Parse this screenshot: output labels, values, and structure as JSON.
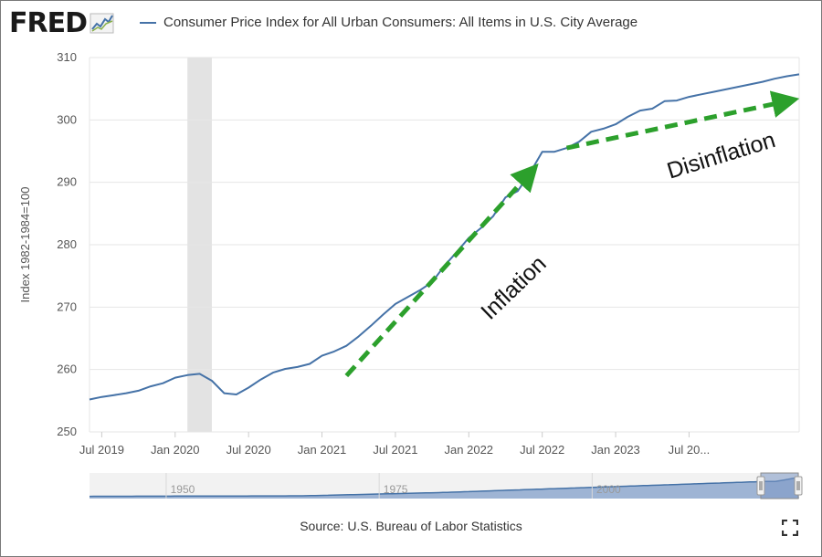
{
  "header": {
    "logo_text": "FRED",
    "series_label": "Consumer Price Index for All Urban Consumers: All Items in U.S. City Average"
  },
  "source": "Source: U.S. Bureau of Labor Statistics",
  "icons": {
    "logo": "line-chart-icon",
    "fullscreen": "fullscreen-icon"
  },
  "colors": {
    "series": "#4572a7",
    "recession": "#e3e3e3",
    "arrow": "#2ca02c",
    "navigator_fill": "#8fa9cf"
  },
  "annotations": [
    {
      "text": "Inflation",
      "from": [
        "2021-03",
        259
      ],
      "to": [
        "2022-06",
        291.5
      ]
    },
    {
      "text": "Disinflation",
      "from": [
        "2022-09",
        295.5
      ],
      "to": [
        "2024-03",
        303
      ]
    }
  ],
  "chart_data": {
    "type": "line",
    "title": "",
    "xlabel": "",
    "ylabel": "Index 1982-1984=100",
    "ylim": [
      250,
      310
    ],
    "yticks": [
      250,
      260,
      270,
      280,
      290,
      300,
      310
    ],
    "xrange": [
      "2019-06",
      "2024-04"
    ],
    "xticks": [
      {
        "date": "2019-07",
        "label": "Jul 2019"
      },
      {
        "date": "2020-01",
        "label": "Jan 2020"
      },
      {
        "date": "2020-07",
        "label": "Jul 2020"
      },
      {
        "date": "2021-01",
        "label": "Jan 2021"
      },
      {
        "date": "2021-07",
        "label": "Jul 2021"
      },
      {
        "date": "2022-01",
        "label": "Jan 2022"
      },
      {
        "date": "2022-07",
        "label": "Jul 2022"
      },
      {
        "date": "2023-01",
        "label": "Jan 2023"
      },
      {
        "date": "2023-07",
        "label": "Jul 20..."
      }
    ],
    "grid": true,
    "legend": "top-left",
    "recession": {
      "start": "2020-02",
      "end": "2020-04"
    },
    "series": [
      {
        "name": "Consumer Price Index for All Urban Consumers: All Items in U.S. City Average",
        "x": [
          "2019-06",
          "2019-07",
          "2019-08",
          "2019-09",
          "2019-10",
          "2019-11",
          "2019-12",
          "2020-01",
          "2020-02",
          "2020-03",
          "2020-04",
          "2020-05",
          "2020-06",
          "2020-07",
          "2020-08",
          "2020-09",
          "2020-10",
          "2020-11",
          "2020-12",
          "2021-01",
          "2021-02",
          "2021-03",
          "2021-04",
          "2021-05",
          "2021-06",
          "2021-07",
          "2021-08",
          "2021-09",
          "2021-10",
          "2021-11",
          "2021-12",
          "2022-01",
          "2022-02",
          "2022-03",
          "2022-04",
          "2022-05",
          "2022-06",
          "2022-07",
          "2022-08",
          "2022-09",
          "2022-10",
          "2022-11",
          "2022-12",
          "2023-01",
          "2023-02",
          "2023-03",
          "2023-04",
          "2023-05",
          "2023-06",
          "2023-07",
          "2023-08",
          "2023-09",
          "2023-10",
          "2023-11",
          "2023-12",
          "2024-01",
          "2024-02",
          "2024-03",
          "2024-04"
        ],
        "values": [
          255.2,
          255.6,
          255.9,
          256.2,
          256.6,
          257.3,
          257.8,
          258.7,
          259.1,
          259.3,
          258.2,
          256.2,
          256.0,
          257.1,
          258.4,
          259.5,
          260.1,
          260.4,
          260.9,
          262.2,
          262.9,
          263.8,
          265.3,
          267.0,
          268.8,
          270.5,
          271.6,
          272.7,
          274.0,
          276.6,
          278.8,
          281.1,
          282.7,
          284.6,
          287.6,
          288.6,
          291.5,
          294.9,
          294.9,
          295.5,
          296.5,
          298.1,
          298.6,
          299.3,
          300.5,
          301.5,
          301.8,
          303.0,
          303.1,
          303.7,
          304.1,
          304.5,
          304.9,
          305.3,
          305.7,
          306.1,
          306.6,
          307.0,
          307.3
        ]
      }
    ]
  },
  "navigator": {
    "tick_labels": [
      "1950",
      "1975",
      "2000"
    ]
  }
}
